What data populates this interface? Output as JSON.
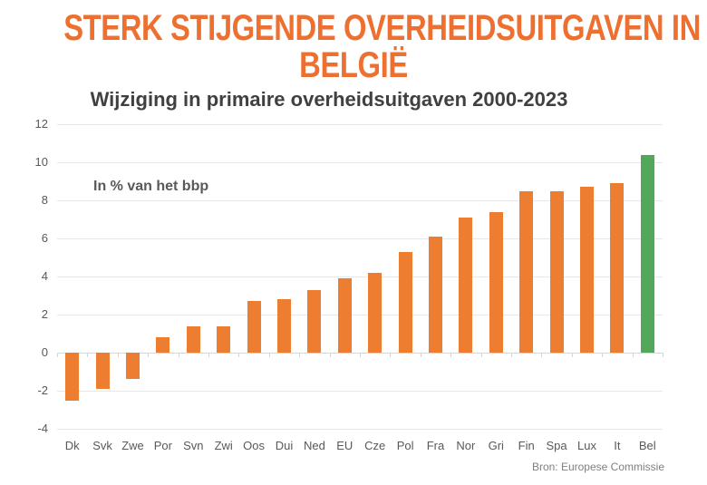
{
  "page": {
    "title_line1": "STERK STIJGENDE OVERHEIDSUITGAVEN IN",
    "title_line2": "BELGIË",
    "subtitle": "Wijziging in primaire overheidsuitgaven 2000-2023",
    "annotation": "In % van het bbp",
    "source": "Bron: Europese Commissie"
  },
  "colors": {
    "title": "#ED7031",
    "subtitle": "#404040",
    "bar_orange": "#ED7D31",
    "bar_green": "#53A75A",
    "axis_text": "#595959",
    "gridline": "#E8E8E8",
    "zero_line": "#D6D6D6",
    "source_text": "#7F7F7F"
  },
  "chart_data": {
    "type": "bar",
    "title": "Wijziging in primaire overheidsuitgaven 2000-2023",
    "unit_note": "In % van het bbp",
    "categories": [
      "Dk",
      "Svk",
      "Zwe",
      "Por",
      "Svn",
      "Zwi",
      "Oos",
      "Dui",
      "Ned",
      "EU",
      "Cze",
      "Pol",
      "Fra",
      "Nor",
      "Gri",
      "Fin",
      "Spa",
      "Lux",
      "It",
      "Bel"
    ],
    "values": [
      -2.5,
      -1.9,
      -1.4,
      0.8,
      1.4,
      1.4,
      2.7,
      2.8,
      3.3,
      3.9,
      4.2,
      5.3,
      6.1,
      7.1,
      7.4,
      8.5,
      8.5,
      8.7,
      8.9,
      10.4
    ],
    "bar_color": "#ED7D31",
    "highlight_category": "Bel",
    "highlight_color": "#53A75A",
    "xlabel": "",
    "ylabel": "",
    "ylim": [
      -4,
      12
    ],
    "ytick_step": 2,
    "yticks": [
      12,
      10,
      8,
      6,
      4,
      2,
      0,
      -2,
      -4
    ],
    "grid": true,
    "legend": "none",
    "source": "Bron: Europese Commissie"
  }
}
